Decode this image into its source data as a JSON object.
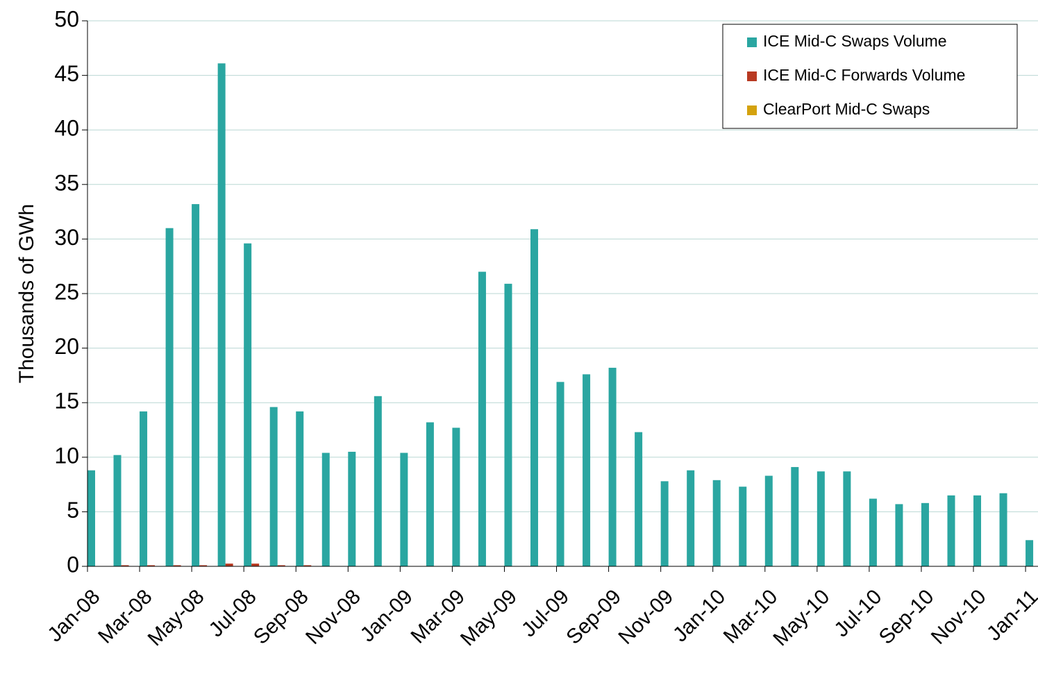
{
  "chart_data": {
    "type": "bar",
    "y_label": "Thousands of GWh",
    "categories": [
      "Jan-08",
      null,
      "Mar-08",
      null,
      "May-08",
      null,
      "Jul-08",
      null,
      "Sep-08",
      null,
      "Nov-08",
      null,
      "Jan-09",
      null,
      "Mar-09",
      null,
      "May-09",
      null,
      "Jul-09",
      null,
      "Sep-09",
      null,
      "Nov-09",
      null,
      "Jan-10",
      null,
      "Mar-10",
      null,
      "May-10",
      null,
      "Jul-10",
      null,
      "Sep-10",
      null,
      "Nov-10",
      null,
      "Jan-11"
    ],
    "series": [
      {
        "name": "ICE Mid-C Swaps Volume",
        "color": "#2aa6a1",
        "values": [
          8.8,
          10.2,
          14.2,
          31.0,
          33.2,
          46.1,
          29.6,
          14.6,
          14.2,
          10.4,
          10.5,
          15.6,
          10.4,
          13.2,
          12.7,
          27.0,
          25.9,
          30.9,
          16.9,
          17.6,
          18.2,
          12.3,
          7.8,
          8.8,
          7.9,
          7.3,
          8.3,
          9.1,
          8.7,
          8.7,
          6.2,
          5.7,
          5.8,
          6.5,
          6.5,
          6.7,
          2.4
        ]
      },
      {
        "name": "ICE Mid-C Forwards Volume",
        "color": "#b83a22",
        "values": [
          0,
          0.1,
          0.1,
          0.1,
          0.1,
          0.25,
          0.25,
          0.1,
          0.1,
          0,
          0,
          0,
          0,
          0,
          0,
          0,
          0,
          0,
          0,
          0,
          0,
          0,
          0,
          0,
          0,
          0,
          0,
          0,
          0,
          0,
          0,
          0,
          0,
          0,
          0,
          0,
          0
        ]
      },
      {
        "name": "ClearPort Mid-C Swaps",
        "color": "#d4a20e",
        "values": [
          0,
          0,
          0,
          0,
          0,
          0,
          0,
          0,
          0,
          0,
          0,
          0,
          0,
          0,
          0,
          0,
          0,
          0,
          0,
          0,
          0,
          0,
          0,
          0,
          0,
          0,
          0,
          0,
          0,
          0,
          0,
          0,
          0,
          0,
          0,
          0,
          0
        ]
      }
    ],
    "ylim": [
      0,
      50
    ],
    "yticks": [
      0,
      5,
      10,
      15,
      20,
      25,
      30,
      35,
      40,
      45,
      50
    ],
    "grid": true,
    "legend": "top-right"
  }
}
